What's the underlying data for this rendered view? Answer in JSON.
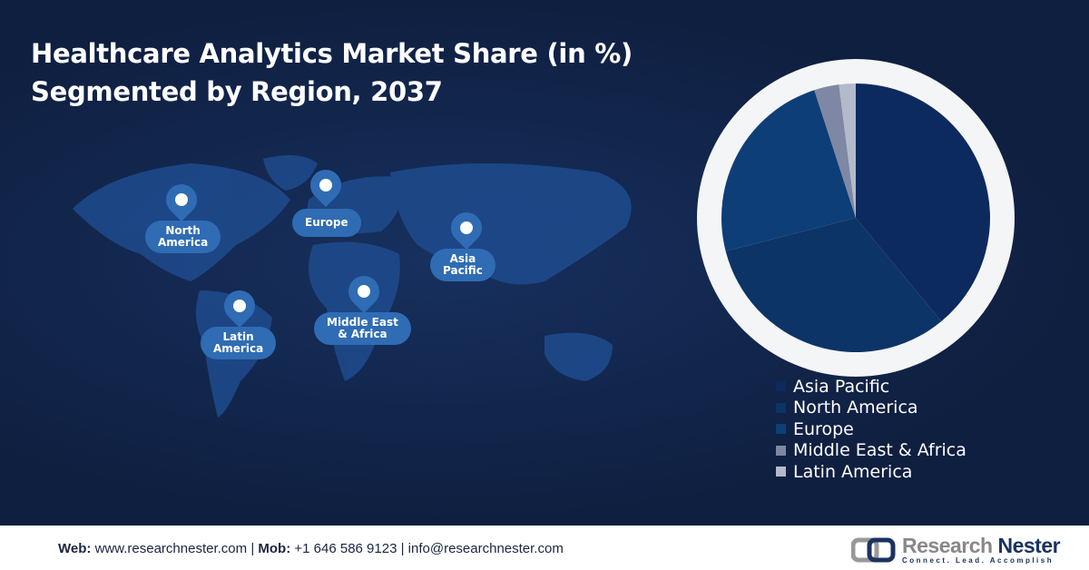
{
  "title_line1": "Healthcare Analytics Market Share (in %)",
  "title_line2": "Segmented by Region, 2037",
  "map_labels": {
    "north_america": [
      "North",
      "America"
    ],
    "europe": [
      "Europe"
    ],
    "asia_pacific": [
      "Asia",
      "Pacific"
    ],
    "latin_america": [
      "Latin",
      "America"
    ],
    "mea": [
      "Middle East",
      "& Africa"
    ]
  },
  "chart_data": {
    "type": "pie",
    "title": "",
    "start_angle": "top, clockwise",
    "legend_position": "bottom-right",
    "categories": [
      "Asia Pacific",
      "North America",
      "Europe",
      "Middle East & Africa",
      "Latin America"
    ],
    "values": [
      39,
      32,
      24,
      3,
      2
    ],
    "colors": [
      "#0c2a5e",
      "#0d3466",
      "#0d3e78",
      "#7e88a4",
      "#b4bacb"
    ]
  },
  "footer": {
    "web_label": "Web:",
    "web": "www.researchnester.com",
    "mob_label": "Mob:",
    "mob": "+1 646 586 9123",
    "email": "info@researchnester.com",
    "sep": "|"
  },
  "logo": {
    "name1": "Research",
    "name2": "Nester",
    "tagline": "Connect. Lead. Accomplish"
  }
}
